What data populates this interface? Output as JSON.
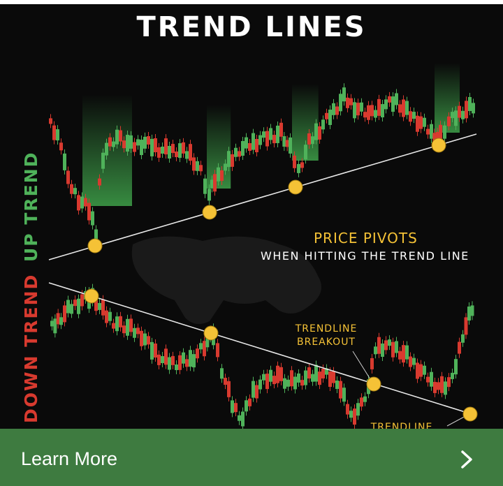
{
  "infographic": {
    "title": "TREND LINES",
    "up_label": "UP TREND",
    "down_label": "DOWN TREND",
    "pivot_title": "PRICE PIVOTS",
    "pivot_subtitle": "WHEN HITTING THE TREND LINE",
    "breakout_label": "TRENDLINE BREAKOUT",
    "bottom_label_partial": "TRENDLINE",
    "colors": {
      "background": "#0a0a0a",
      "bull_candle": "#4fb25a",
      "bear_candle": "#d83a2f",
      "pivot_dot": "#f5c236",
      "trend_line": "#e8e8e8"
    }
  },
  "cta": {
    "label": "Learn More",
    "icon": "chevron-right-icon",
    "background": "#3e7b40"
  }
}
